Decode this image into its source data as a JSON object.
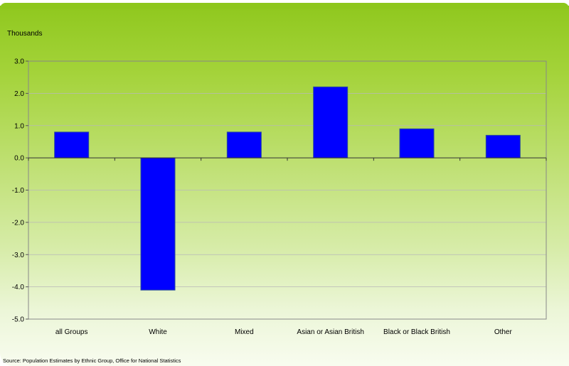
{
  "chart_data": {
    "type": "bar",
    "title": "",
    "ylabel": "Thousands",
    "xlabel": "",
    "categories": [
      "all Groups",
      "White",
      "Mixed",
      "Asian or Asian British",
      "Black or Black British",
      "Other"
    ],
    "values": [
      0.8,
      -4.1,
      0.8,
      2.2,
      0.9,
      0.7
    ],
    "ylim": [
      -5.0,
      3.0
    ],
    "yticks": [
      "3.0",
      "2.0",
      "1.0",
      "0.0",
      "-1.0",
      "-2.0",
      "-3.0",
      "-4.0",
      "-5.0"
    ],
    "bar_color": "#0000ff",
    "grid": true,
    "legend": "none"
  },
  "source": "Source: Population Estimates by Ethnic Group, Office for National Statistics"
}
